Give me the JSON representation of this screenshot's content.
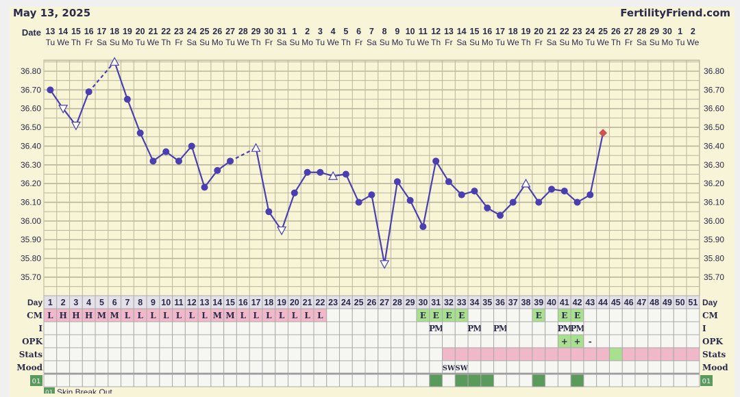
{
  "header": {
    "date": "May 13, 2025",
    "brand": "FertilityFriend.com"
  },
  "row_labels": {
    "date": "Date",
    "day": "Day",
    "cm": "CM",
    "i": "I",
    "opk": "OPK",
    "stats": "Stats",
    "mood": "Mood",
    "custom": "01"
  },
  "legend": {
    "code": "01",
    "label": "Skin Break Out"
  },
  "colors": {
    "line": "#4a3fb0",
    "pink": "#f0b8c8",
    "green": "#a8e090",
    "dark_green": "#5a9a5a",
    "coverline_marker": "#d05050",
    "grid_bg": "#f8f4d6"
  },
  "chart_data": {
    "type": "line",
    "ylim": [
      35.6,
      36.86
    ],
    "yticks": [
      "36.80",
      "36.70",
      "36.60",
      "36.50",
      "36.40",
      "36.30",
      "36.20",
      "36.10",
      "36.00",
      "35.90",
      "35.80",
      "35.70"
    ],
    "dates": [
      "13",
      "14",
      "15",
      "16",
      "17",
      "18",
      "19",
      "20",
      "21",
      "22",
      "23",
      "24",
      "25",
      "26",
      "27",
      "28",
      "29",
      "30",
      "31",
      "1",
      "2",
      "3",
      "4",
      "5",
      "6",
      "7",
      "8",
      "9",
      "10",
      "11",
      "12",
      "13",
      "14",
      "15",
      "16",
      "17",
      "18",
      "19",
      "20",
      "21",
      "22",
      "23",
      "24",
      "25",
      "26",
      "27",
      "28",
      "29",
      "30",
      "1",
      "2"
    ],
    "weekdays": [
      "Tu",
      "We",
      "Th",
      "Fr",
      "Sa",
      "Su",
      "Mo",
      "Tu",
      "We",
      "Th",
      "Fr",
      "Sa",
      "Su",
      "Mo",
      "Tu",
      "We",
      "Th",
      "Fr",
      "Sa",
      "Su",
      "Mo",
      "Tu",
      "We",
      "Th",
      "Fr",
      "Sa",
      "Su",
      "Mo",
      "Tu",
      "We",
      "Th",
      "Fr",
      "Sa",
      "Su",
      "Mo",
      "Tu",
      "We",
      "Th",
      "Fr",
      "Sa",
      "Su",
      "Mo",
      "Tu",
      "We",
      "Th",
      "Fr",
      "Sa",
      "Su",
      "Mo",
      "Tu",
      "We"
    ],
    "temps": [
      36.7,
      36.6,
      36.51,
      36.69,
      null,
      36.85,
      36.65,
      36.47,
      36.32,
      36.37,
      36.32,
      36.4,
      36.18,
      36.27,
      36.32,
      null,
      36.39,
      36.05,
      35.95,
      36.15,
      36.26,
      36.26,
      36.24,
      36.25,
      36.1,
      36.14,
      35.77,
      36.21,
      36.11,
      35.97,
      36.32,
      36.21,
      36.14,
      36.16,
      36.07,
      36.03,
      36.1,
      36.2,
      36.1,
      36.17,
      36.16,
      36.1,
      36.14,
      36.47
    ],
    "markers": [
      "dot",
      "tri-down",
      "tri-down",
      "dot",
      null,
      "tri-up",
      "dot",
      "dot",
      "dot",
      "dot",
      "dot",
      "dot",
      "dot",
      "dot",
      "dot",
      null,
      "tri-up",
      "dot",
      "tri-down",
      "dot",
      "dot",
      "dot",
      "tri-up",
      "dot",
      "dot",
      "dot",
      "tri-down",
      "dot",
      "dot",
      "dot",
      "dot",
      "dot",
      "dot",
      "dot",
      "dot",
      "dot",
      "dot",
      "tri-up",
      "dot",
      "dot",
      "dot",
      "dot",
      "dot",
      "diamond"
    ],
    "cm": [
      "L",
      "H",
      "H",
      "H",
      "M",
      "M",
      "L",
      "L",
      "L",
      "L",
      "L",
      "L",
      "L",
      "M",
      "M",
      "L",
      "L",
      "L",
      "L",
      "L",
      "L",
      "L",
      "",
      "",
      "",
      "",
      "",
      "",
      "",
      "E",
      "E",
      "E",
      "E",
      "",
      "",
      "",
      "",
      "",
      "E",
      "",
      "E",
      "E",
      "",
      "",
      "",
      "",
      "",
      "",
      "",
      "",
      ""
    ],
    "intercourse": [
      "",
      "",
      "",
      "",
      "",
      "",
      "",
      "",
      "",
      "",
      "",
      "",
      "",
      "",
      "",
      "",
      "",
      "",
      "",
      "",
      "",
      "",
      "",
      "",
      "",
      "",
      "",
      "",
      "",
      "",
      "PM",
      "",
      "",
      "PM",
      "",
      "PM",
      "",
      "",
      "",
      "",
      "PM",
      "PM",
      "",
      "",
      "",
      "",
      "",
      "",
      "",
      "",
      ""
    ],
    "opk": [
      "",
      "",
      "",
      "",
      "",
      "",
      "",
      "",
      "",
      "",
      "",
      "",
      "",
      "",
      "",
      "",
      "",
      "",
      "",
      "",
      "",
      "",
      "",
      "",
      "",
      "",
      "",
      "",
      "",
      "",
      "",
      "",
      "",
      "",
      "",
      "",
      "",
      "",
      "",
      "",
      "+",
      "+",
      "-",
      "",
      "",
      "",
      "",
      "",
      "",
      "",
      ""
    ],
    "stats": [
      "",
      "",
      "",
      "",
      "",
      "",
      "",
      "",
      "",
      "",
      "",
      "",
      "",
      "",
      "",
      "",
      "",
      "",
      "",
      "",
      "",
      "",
      "",
      "",
      "",
      "",
      "",
      "",
      "",
      "",
      "",
      "p",
      "p",
      "p",
      "p",
      "p",
      "p",
      "p",
      "p",
      "p",
      "p",
      "p",
      "p",
      "p",
      "g",
      "p",
      "p",
      "p",
      "p",
      "p",
      "p"
    ],
    "mood": [
      "",
      "",
      "",
      "",
      "",
      "",
      "",
      "",
      "",
      "",
      "",
      "",
      "",
      "",
      "",
      "",
      "",
      "",
      "",
      "",
      "",
      "",
      "",
      "",
      "",
      "",
      "",
      "",
      "",
      "",
      "",
      "SW",
      "SW",
      "",
      "",
      "",
      "",
      "",
      "",
      "",
      "",
      "",
      "",
      "",
      "",
      "",
      "",
      "",
      "",
      "",
      ""
    ],
    "custom_01": [
      31,
      33,
      34,
      35,
      39,
      42
    ]
  }
}
